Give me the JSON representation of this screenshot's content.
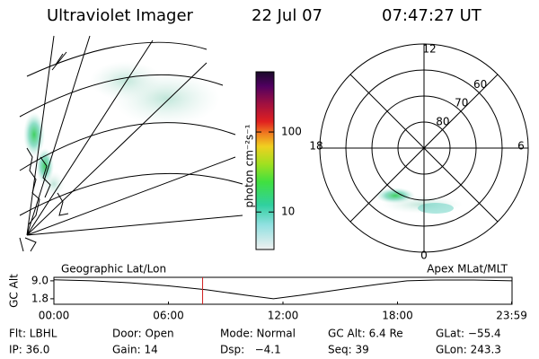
{
  "header": {
    "title": "Ultraviolet Imager",
    "date": "22 Jul 07",
    "time": "07:47:27 UT"
  },
  "colorbar": {
    "label": "photon cm⁻²s⁻¹",
    "scale": "log",
    "lim": [
      3.4,
      565
    ],
    "ticks": [
      10,
      100
    ]
  },
  "polar": {
    "mlt_labels": {
      "top": "12",
      "left": "18",
      "right": "6",
      "bottom": "0"
    },
    "rings": [
      80,
      70,
      60
    ]
  },
  "chart_data": {
    "type": "line",
    "ylabel": "GC Alt",
    "left_label": "Geographic Lat/Lon",
    "right_label": "Apex MLat/MLT",
    "x": [
      0,
      2,
      4,
      6,
      8,
      10,
      11.5,
      13,
      15,
      17,
      18.5,
      20,
      22,
      24
    ],
    "values": [
      9.4,
      9.0,
      8.2,
      7.0,
      5.4,
      3.3,
      1.8,
      3.3,
      5.5,
      7.6,
      9.0,
      9.3,
      9.3,
      9.0
    ],
    "color": "#000000",
    "marker_x": 7.79,
    "marker_color": "#d02020",
    "xlim": [
      0,
      24
    ],
    "ylim": [
      -0.4,
      10.4
    ],
    "xticks": [
      {
        "value": 0,
        "label": "00:00"
      },
      {
        "value": 6,
        "label": "06:00"
      },
      {
        "value": 12,
        "label": "12:00"
      },
      {
        "value": 18,
        "label": "18:00"
      },
      {
        "value": 23.98,
        "label": "23:59"
      }
    ],
    "yticks": [
      {
        "value": 9.0,
        "label": "9.0"
      },
      {
        "value": 1.8,
        "label": "1.8"
      }
    ]
  },
  "footer": {
    "rows": [
      [
        "Flt: LBHL",
        "Door: Open",
        "Mode: Normal",
        "GC Alt: 6.4 Re",
        "GLat: −55.4"
      ],
      [
        "IP: 36.0",
        "Gain: 14",
        "Dsp:   −4.1",
        "Seq: 39",
        "GLon: 243.3"
      ]
    ]
  }
}
